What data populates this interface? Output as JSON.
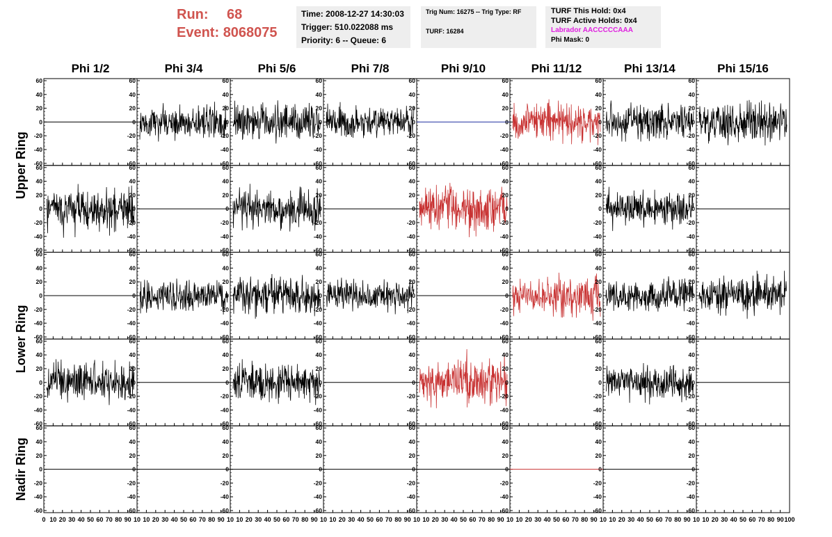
{
  "header": {
    "run_label": "Run:",
    "run_value": "68",
    "event_label": "Event:",
    "event_value": "8068075",
    "time": "Time: 2008-12-27 14:30:03",
    "trigger": "Trigger: 510.022088 ms",
    "priority": "Priority: 6 -- Queue: 6",
    "trig_num": "Trig Num: 16275 -- Trig Type: RF",
    "turf": "TURF: 16284",
    "turf_this_hold": "TURF This Hold: 0x4",
    "turf_active_holds": "TURF Active Holds: 0x4",
    "labrador": "Labrador AACCCCCAAA",
    "phi_mask": "Phi Mask: 0"
  },
  "colors": {
    "run": "#d0544f",
    "labrador": "#e020e0",
    "trace_default": "#000000",
    "trace_highlight": "#c83232",
    "trace_blue": "#2030a0",
    "pane": "#eeeeee"
  },
  "chart_data": {
    "type": "line",
    "columns": [
      "Phi 1/2",
      "Phi 3/4",
      "Phi 5/6",
      "Phi 7/8",
      "Phi 9/10",
      "Phi 11/12",
      "Phi 13/14",
      "Phi 15/16"
    ],
    "rows": [
      "Upper Ring",
      "Upper Ring",
      "Lower Ring",
      "Lower Ring",
      "Nadir Ring"
    ],
    "ring_labels": [
      "Upper Ring",
      "Lower Ring",
      "Nadir Ring"
    ],
    "xlim": [
      0,
      100
    ],
    "ylim": [
      -60,
      60
    ],
    "y_ticks": [
      60,
      40,
      20,
      0,
      -20,
      -40,
      -60
    ],
    "x_tick_labels": [
      "0",
      "10",
      "20",
      "30",
      "40",
      "50",
      "60",
      "70",
      "80",
      "90",
      "10"
    ],
    "x_tick_last_panel": "100",
    "panel_types": [
      [
        "flat",
        "noise",
        "noise",
        "noise",
        "flat-blue",
        "noise-red",
        "noise",
        "noise"
      ],
      [
        "noise",
        "flat",
        "noise",
        "flat",
        "noise-red",
        "none",
        "noise",
        "flat"
      ],
      [
        "flat",
        "noise",
        "noise",
        "noise",
        "flat",
        "noise-red",
        "noise",
        "noise"
      ],
      [
        "noise",
        "flat",
        "noise",
        "flat",
        "noise-red",
        "none",
        "noise",
        "flat"
      ],
      [
        "flat",
        "flat",
        "flat",
        "flat",
        "flat",
        "flat-red",
        "flat",
        "none"
      ]
    ],
    "panel_amplitudes": [
      [
        0,
        20,
        25,
        20,
        0,
        25,
        22,
        25
      ],
      [
        28,
        0,
        26,
        0,
        32,
        0,
        22,
        0
      ],
      [
        0,
        20,
        25,
        20,
        0,
        25,
        22,
        25
      ],
      [
        25,
        0,
        24,
        0,
        32,
        0,
        22,
        0
      ],
      [
        0,
        0,
        0,
        0,
        0,
        0,
        0,
        0
      ]
    ]
  }
}
